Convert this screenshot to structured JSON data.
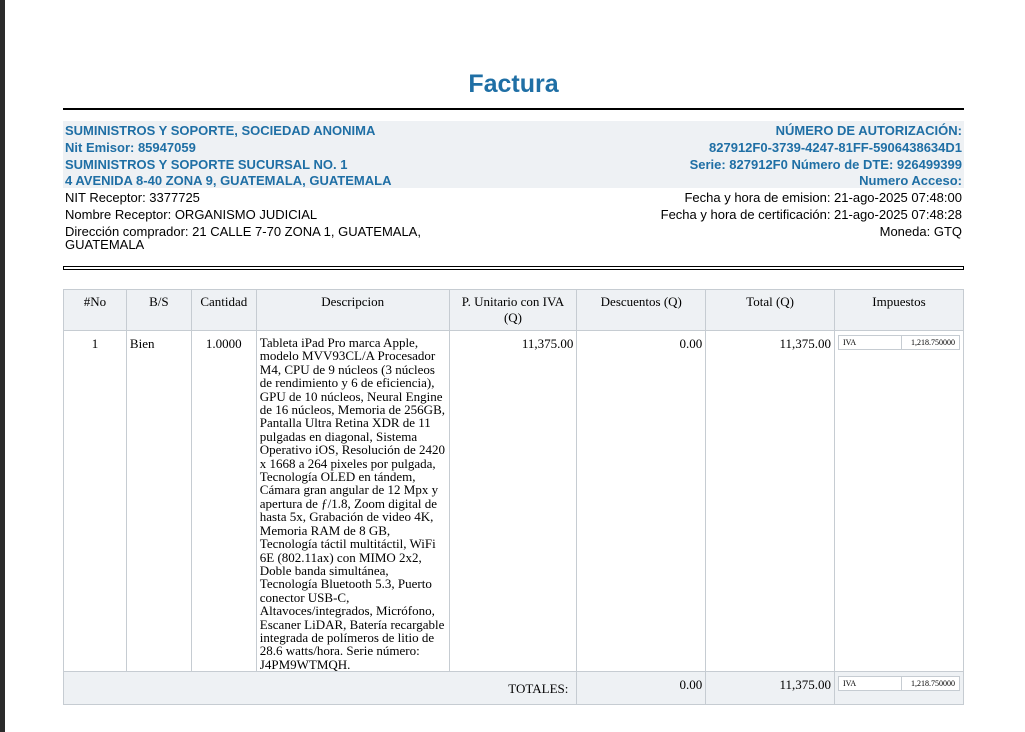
{
  "document": {
    "title": "Factura"
  },
  "issuer": {
    "name": "SUMINISTROS Y SOPORTE, SOCIEDAD ANONIMA",
    "nit": "Nit Emisor: 85947059",
    "branch": "SUMINISTROS Y SOPORTE SUCURSAL NO. 1",
    "address": "4 AVENIDA 8-40 ZONA 9, GUATEMALA, GUATEMALA"
  },
  "authorization": {
    "label": "NÚMERO DE AUTORIZACIÓN:",
    "number": "827912F0-3739-4247-81FF-5906438634D1",
    "series_dte": "Serie: 827912F0 Número de DTE: 926499399",
    "access_label": "Numero Acceso:"
  },
  "receiver": {
    "nit": "NIT Receptor: 3377725",
    "name": "Nombre Receptor: ORGANISMO JUDICIAL",
    "address": "Dirección comprador: 21 CALLE 7-70 ZONA 1, GUATEMALA, GUATEMALA"
  },
  "dates": {
    "emission": "Fecha y hora de emision: 21-ago-2025 07:48:00",
    "certification": "Fecha y hora de certificación: 21-ago-2025 07:48:28",
    "currency": "Moneda: GTQ"
  },
  "table": {
    "headers": [
      "#No",
      "B/S",
      "Cantidad",
      "Descripcion",
      "P. Unitario con IVA (Q)",
      "Descuentos (Q)",
      "Total (Q)",
      "Impuestos"
    ],
    "rows": [
      {
        "no": "1",
        "bs": "Bien",
        "qty": "1.0000",
        "description": "Tableta iPad Pro marca Apple, modelo MVV93CL/A Procesador M4, CPU de 9 núcleos (3 núcleos de rendimiento y 6 de eficiencia), GPU de 10 núcleos, Neural Engine de 16 núcleos, Memoria de 256GB, Pantalla Ultra Retina XDR de 11 pulgadas en diagonal, Sistema Operativo iOS, Resolución de 2420 x 1668 a 264 pixeles por pulgada, Tecnología OLED en tándem, Cámara gran angular de 12 Mpx y apertura de ƒ/1.8, Zoom digital de hasta 5x, Grabación de video 4K, Memoria RAM de 8 GB, Tecnología táctil multitáctil, WiFi 6E (802.11ax) con MIMO 2x2, Doble banda simultánea, Tecnología Bluetooth 5.3, Puerto conector USB-C, Altavoces/integrados, Micrófono, Escaner LiDAR, Batería recargable integrada de polímeros de litio de 28.6 watts/hora. Serie número: J4PM9WTMQH.",
        "unit_price": "11,375.00",
        "discount": "0.00",
        "total": "11,375.00",
        "tax_name": "IVA",
        "tax_value": "1,218.750000"
      }
    ],
    "totals": {
      "label": "TOTALES:",
      "discount": "0.00",
      "total": "11,375.00",
      "tax_name": "IVA",
      "tax_value": "1,218.750000"
    }
  }
}
